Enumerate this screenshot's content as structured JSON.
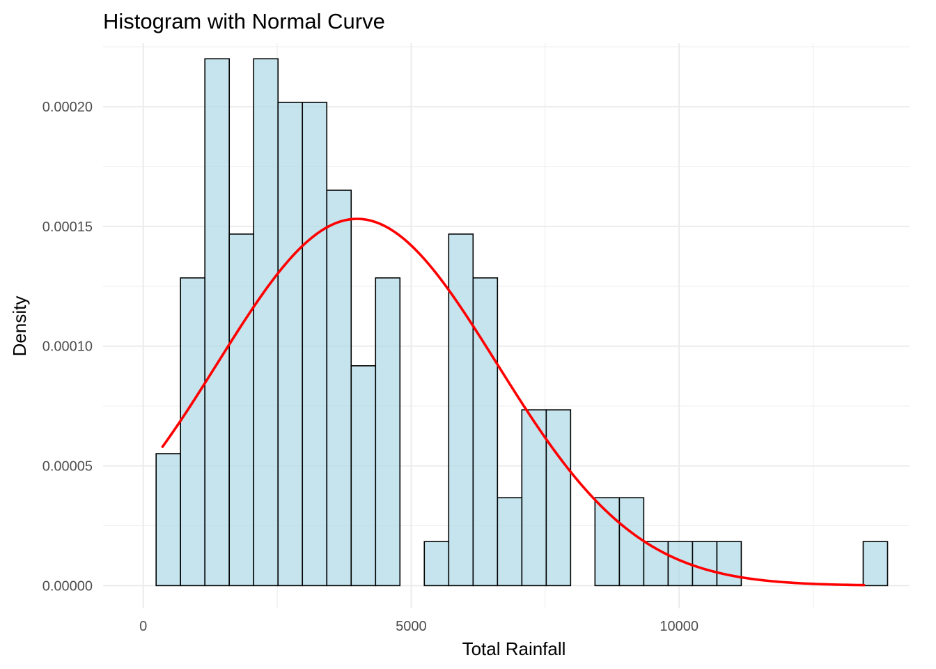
{
  "chart_data": {
    "type": "bar",
    "subtype": "histogram-with-density-curve",
    "title": "Histogram with Normal Curve",
    "xlabel": "Total Rainfall",
    "ylabel": "Density",
    "xlim": [
      -750,
      14300
    ],
    "ylim": [
      -9.5e-06,
      0.0002265
    ],
    "x_ticks": [
      0,
      5000,
      10000
    ],
    "x_tick_labels": [
      "0",
      "5000",
      "10000"
    ],
    "x_minor_ticks": [
      2500,
      7500,
      12500
    ],
    "y_ticks": [
      0,
      5e-05,
      0.0001,
      0.00015,
      0.0002
    ],
    "y_tick_labels": [
      "0.00000",
      "0.00005",
      "0.00010",
      "0.00015",
      "0.00020"
    ],
    "y_minor_ticks": [
      2.5e-05,
      7.5e-05,
      0.000125,
      0.000175,
      0.000225
    ],
    "grid": true,
    "legend": "none",
    "bin_width": 455,
    "bins": [
      {
        "start": 240,
        "end": 695,
        "density": 5.51e-05
      },
      {
        "start": 695,
        "end": 1150,
        "density": 0.0001285
      },
      {
        "start": 1150,
        "end": 1605,
        "density": 0.00022
      },
      {
        "start": 1605,
        "end": 2060,
        "density": 0.0001468
      },
      {
        "start": 2060,
        "end": 2515,
        "density": 0.00022
      },
      {
        "start": 2515,
        "end": 2970,
        "density": 0.0002018
      },
      {
        "start": 2970,
        "end": 3425,
        "density": 0.0002018
      },
      {
        "start": 3425,
        "end": 3880,
        "density": 0.0001651
      },
      {
        "start": 3880,
        "end": 4335,
        "density": 9.18e-05
      },
      {
        "start": 4335,
        "end": 4790,
        "density": 0.0001285
      },
      {
        "start": 4790,
        "end": 5245,
        "density": 0
      },
      {
        "start": 5245,
        "end": 5700,
        "density": 1.84e-05
      },
      {
        "start": 5700,
        "end": 6155,
        "density": 0.0001468
      },
      {
        "start": 6155,
        "end": 6610,
        "density": 0.0001285
      },
      {
        "start": 6610,
        "end": 7065,
        "density": 3.67e-05
      },
      {
        "start": 7065,
        "end": 7520,
        "density": 7.34e-05
      },
      {
        "start": 7520,
        "end": 7975,
        "density": 7.34e-05
      },
      {
        "start": 7975,
        "end": 8430,
        "density": 0
      },
      {
        "start": 8430,
        "end": 8885,
        "density": 3.67e-05
      },
      {
        "start": 8885,
        "end": 9340,
        "density": 3.67e-05
      },
      {
        "start": 9340,
        "end": 9795,
        "density": 1.84e-05
      },
      {
        "start": 9795,
        "end": 10250,
        "density": 1.84e-05
      },
      {
        "start": 10250,
        "end": 10705,
        "density": 1.84e-05
      },
      {
        "start": 10705,
        "end": 11160,
        "density": 1.84e-05
      },
      {
        "start": 11160,
        "end": 11615,
        "density": 0
      },
      {
        "start": 11615,
        "end": 12070,
        "density": 0
      },
      {
        "start": 12070,
        "end": 12525,
        "density": 0
      },
      {
        "start": 12525,
        "end": 12980,
        "density": 0
      },
      {
        "start": 12980,
        "end": 13435,
        "density": 0
      },
      {
        "start": 13435,
        "end": 13890,
        "density": 1.84e-05
      }
    ],
    "normal_curve": {
      "mean": 3990,
      "sd": 2605,
      "x_from": 360,
      "x_to": 13450,
      "color": "#ff0000"
    },
    "colors": {
      "bar_fill": "#add8e6",
      "bar_fill_opacity": 0.7,
      "bar_stroke": "#000000",
      "grid": "#ebebeb",
      "curve": "#ff0000"
    }
  }
}
